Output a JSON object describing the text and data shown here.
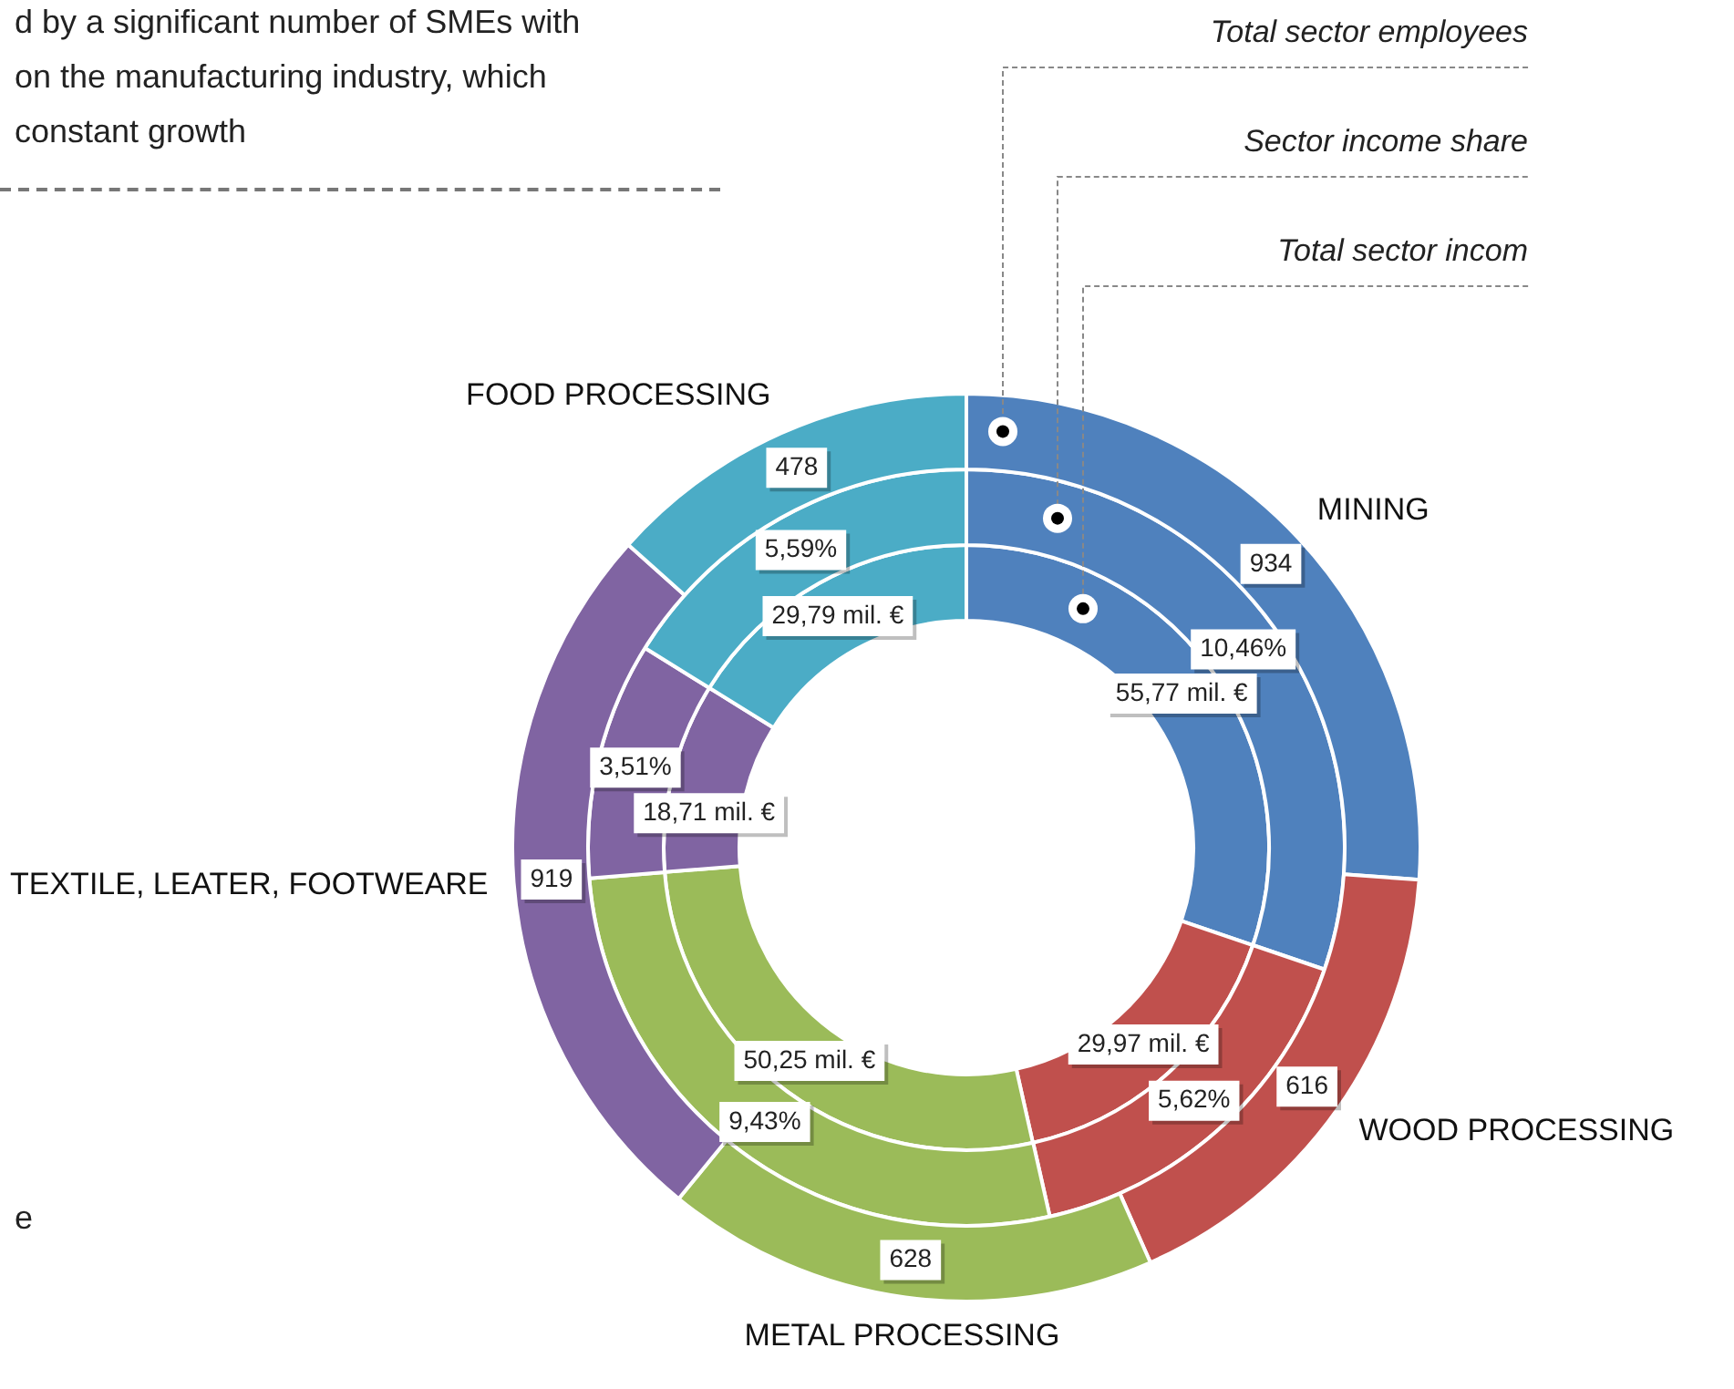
{
  "chart_data": {
    "type": "donut",
    "categories": [
      "MINING",
      "WOOD PROCESSING",
      "METAL PROCESSING",
      "TEXTILE, LEATER, FOOTWEARE",
      "FOOD PROCESSING"
    ],
    "colors": [
      "#4f81bd",
      "#c0504d",
      "#9bbb59",
      "#8064a2",
      "#4bacc6"
    ],
    "series": [
      {
        "name": "Total sector employees",
        "values": [
          934,
          616,
          628,
          919,
          478
        ],
        "value_labels": [
          "934",
          "616",
          "628",
          "919",
          "478"
        ]
      },
      {
        "name": "Sector income share",
        "values": [
          10.46,
          5.62,
          9.43,
          3.51,
          5.59
        ],
        "value_labels": [
          "10,46%",
          "5,62%",
          "9,43%",
          "3,51%",
          "5,59%"
        ]
      },
      {
        "name": "Total sector incom",
        "values": [
          55.77,
          29.97,
          50.25,
          18.71,
          29.79
        ],
        "value_labels": [
          "55,77 mil. €",
          "29,97 mil. €",
          "50,25 mil. €",
          "18,71 mil. €",
          "29,79 mil. €"
        ]
      }
    ],
    "legend": false,
    "annotations": [
      "d by a significant number of SMEs with",
      "on the manufacturing industry, which",
      "constant growth",
      "e"
    ]
  }
}
